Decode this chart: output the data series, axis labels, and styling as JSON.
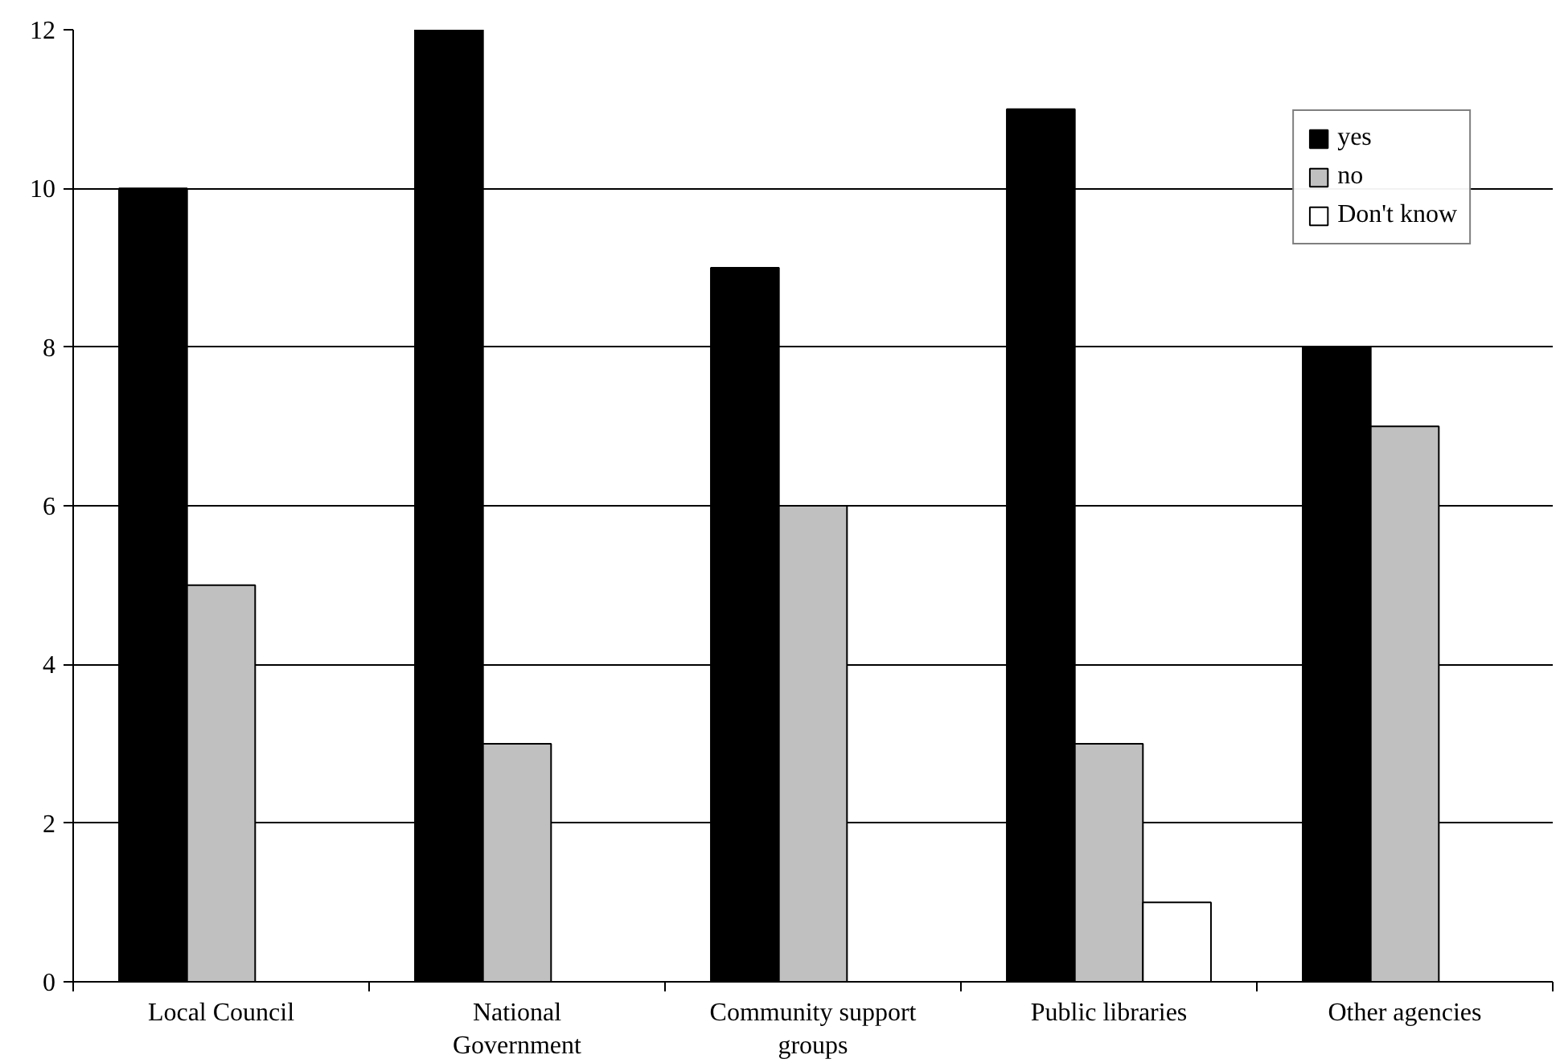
{
  "chart_data": {
    "type": "bar",
    "categories": [
      "Local Council",
      "National Government",
      "Community support groups",
      "Public libraries",
      "Other agencies"
    ],
    "series": [
      {
        "name": "yes",
        "color": "#000000",
        "values": [
          10,
          12,
          9,
          11,
          8
        ]
      },
      {
        "name": "no",
        "color": "#c0c0c0",
        "values": [
          5,
          3,
          6,
          3,
          7
        ]
      },
      {
        "name": "Don't know",
        "color": "#ffffff",
        "values": [
          null,
          null,
          null,
          1,
          null
        ]
      }
    ],
    "ylim": [
      0,
      12
    ],
    "yticks": [
      0,
      2,
      4,
      6,
      8,
      10,
      12
    ],
    "grid": "y",
    "legend": "top right"
  }
}
